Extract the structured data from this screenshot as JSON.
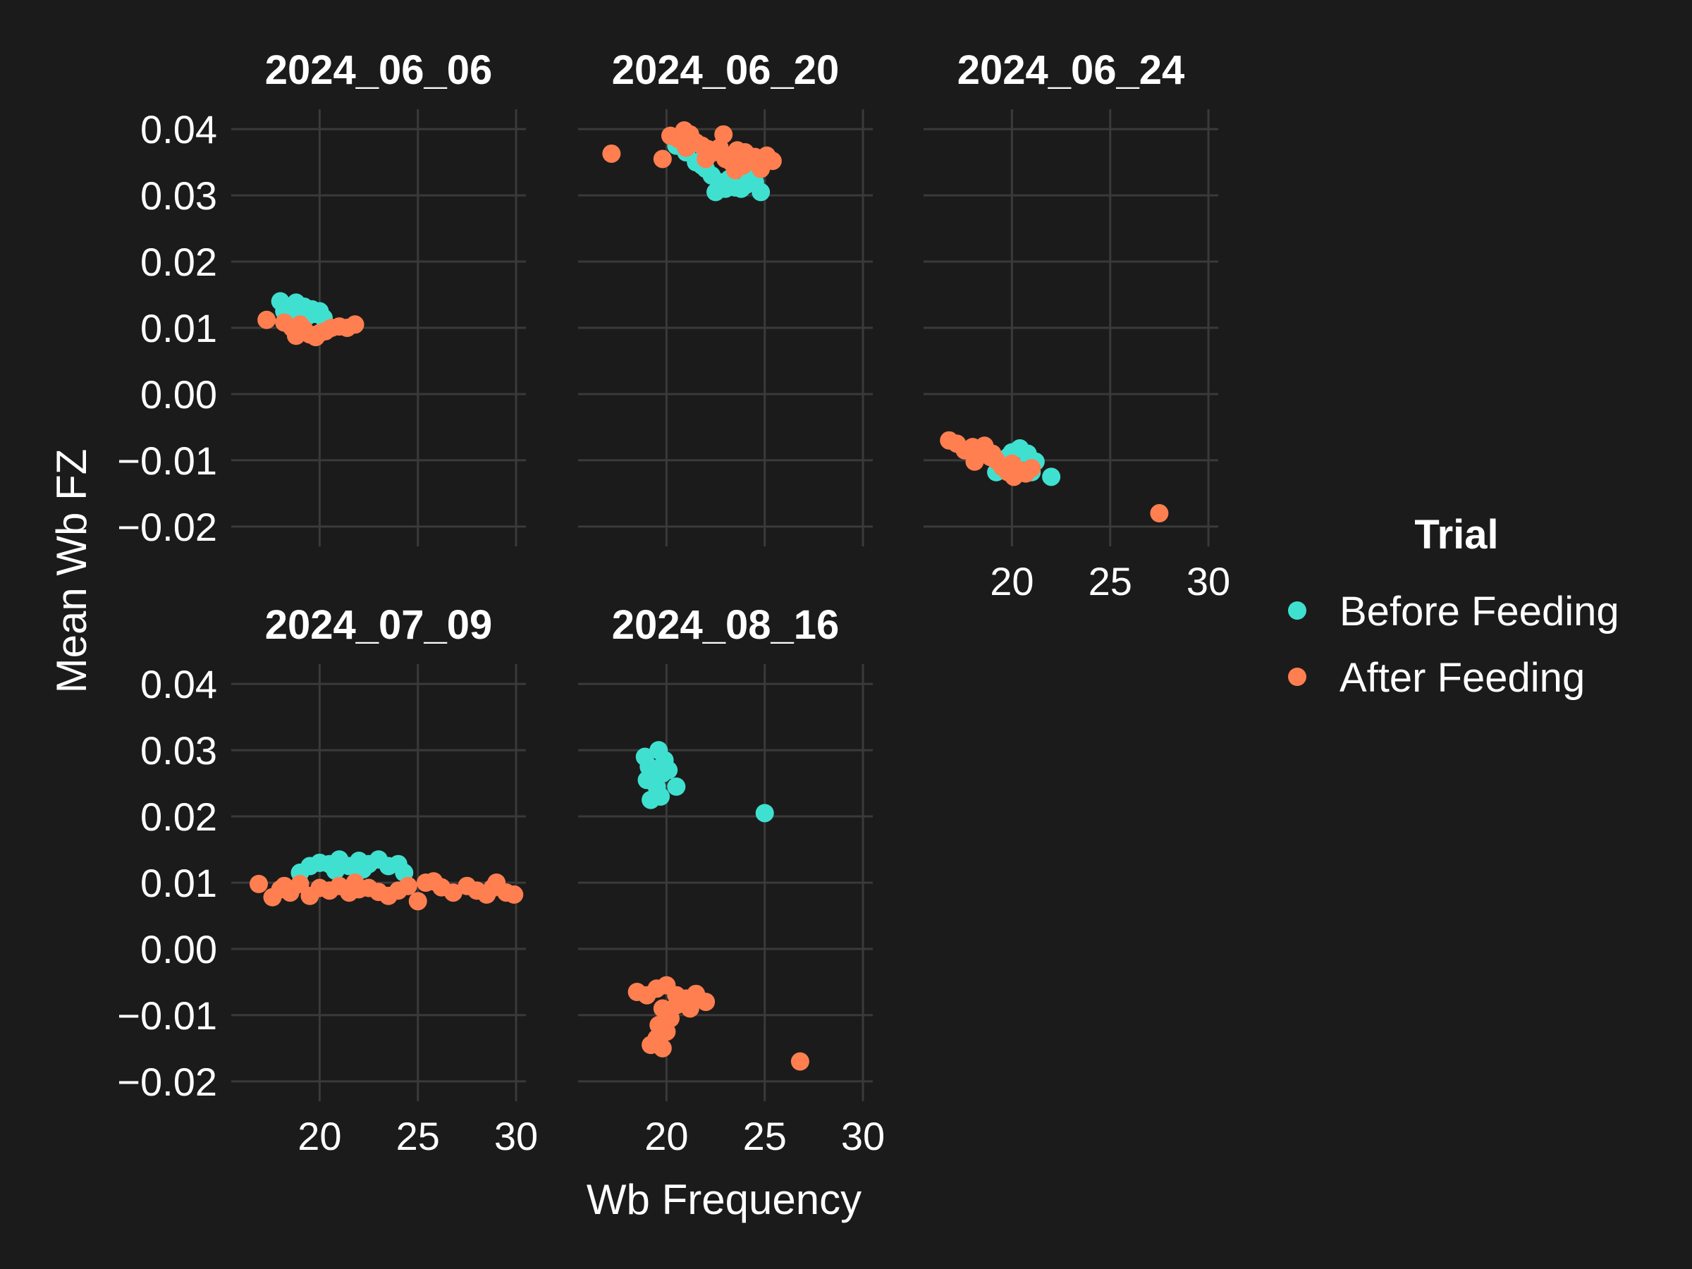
{
  "chart_data": {
    "type": "scatter",
    "xlabel": "Wb Frequency",
    "ylabel": "Mean Wb FZ",
    "xlim": [
      15.5,
      30.5
    ],
    "ylim": [
      -0.023,
      0.043
    ],
    "x_ticks": [
      20,
      25,
      30
    ],
    "x_tick_labels": [
      "20",
      "25",
      "30"
    ],
    "y_ticks": [
      0.04,
      0.03,
      0.02,
      0.01,
      0.0,
      -0.01,
      -0.02
    ],
    "y_tick_labels": [
      "0.04",
      "0.03",
      "0.02",
      "0.01",
      "0.00",
      "−0.01",
      "−0.02"
    ],
    "grid": true,
    "legend": {
      "title": "Trial",
      "placement": "right",
      "entries": [
        {
          "label": "Before Feeding",
          "color": "#40e0d0"
        },
        {
          "label": "After Feeding",
          "color": "#ff7f50"
        }
      ]
    },
    "facets": [
      {
        "title": "2024_06_06",
        "before": [
          [
            18.0,
            0.014
          ],
          [
            18.4,
            0.013
          ],
          [
            18.8,
            0.0138
          ],
          [
            19.2,
            0.0132
          ],
          [
            19.6,
            0.0128
          ],
          [
            20.0,
            0.0125
          ],
          [
            18.6,
            0.012
          ],
          [
            19.0,
            0.0126
          ],
          [
            19.4,
            0.0118
          ],
          [
            18.2,
            0.0125
          ],
          [
            19.8,
            0.0121
          ],
          [
            20.2,
            0.0115
          ]
        ],
        "after": [
          [
            17.3,
            0.0112
          ],
          [
            18.2,
            0.0108
          ],
          [
            18.6,
            0.01
          ],
          [
            18.9,
            0.0094
          ],
          [
            19.2,
            0.0098
          ],
          [
            19.5,
            0.009
          ],
          [
            19.8,
            0.0086
          ],
          [
            20.0,
            0.0092
          ],
          [
            20.3,
            0.0095
          ],
          [
            20.6,
            0.01
          ],
          [
            21.0,
            0.0102
          ],
          [
            21.4,
            0.01
          ],
          [
            21.8,
            0.0105
          ],
          [
            19.0,
            0.0105
          ],
          [
            18.8,
            0.0088
          ]
        ]
      },
      {
        "title": "2024_06_20",
        "before": [
          [
            20.5,
            0.0375
          ],
          [
            21.0,
            0.0365
          ],
          [
            21.5,
            0.035
          ],
          [
            22.0,
            0.034
          ],
          [
            22.3,
            0.033
          ],
          [
            22.7,
            0.032
          ],
          [
            23.0,
            0.031
          ],
          [
            23.5,
            0.0312
          ],
          [
            24.0,
            0.0315
          ],
          [
            24.5,
            0.032
          ],
          [
            24.8,
            0.0305
          ],
          [
            22.5,
            0.0305
          ],
          [
            21.8,
            0.0345
          ],
          [
            23.2,
            0.0325
          ],
          [
            24.2,
            0.033
          ],
          [
            23.8,
            0.031
          ]
        ],
        "after": [
          [
            17.2,
            0.0363
          ],
          [
            19.8,
            0.0355
          ],
          [
            20.2,
            0.039
          ],
          [
            20.6,
            0.0385
          ],
          [
            20.9,
            0.0398
          ],
          [
            21.2,
            0.0392
          ],
          [
            21.5,
            0.038
          ],
          [
            21.8,
            0.0375
          ],
          [
            22.1,
            0.037
          ],
          [
            22.4,
            0.0365
          ],
          [
            22.7,
            0.0372
          ],
          [
            23.0,
            0.0355
          ],
          [
            23.3,
            0.035
          ],
          [
            23.6,
            0.0368
          ],
          [
            23.9,
            0.0345
          ],
          [
            24.2,
            0.0352
          ],
          [
            24.5,
            0.0358
          ],
          [
            24.8,
            0.034
          ],
          [
            25.1,
            0.036
          ],
          [
            25.4,
            0.0352
          ],
          [
            22.9,
            0.0392
          ],
          [
            21.0,
            0.0372
          ],
          [
            22.0,
            0.0355
          ],
          [
            23.5,
            0.0338
          ],
          [
            24.0,
            0.0365
          ]
        ]
      },
      {
        "title": "2024_06_24",
        "before": [
          [
            19.2,
            -0.0118
          ],
          [
            19.6,
            -0.01
          ],
          [
            20.0,
            -0.0088
          ],
          [
            20.4,
            -0.0082
          ],
          [
            20.8,
            -0.009
          ],
          [
            21.2,
            -0.0102
          ],
          [
            21.0,
            -0.0118
          ],
          [
            20.2,
            -0.011
          ],
          [
            19.8,
            -0.0095
          ],
          [
            22.0,
            -0.0125
          ]
        ],
        "after": [
          [
            16.8,
            -0.007
          ],
          [
            17.2,
            -0.0075
          ],
          [
            17.6,
            -0.0085
          ],
          [
            18.0,
            -0.008
          ],
          [
            18.3,
            -0.009
          ],
          [
            18.6,
            -0.0078
          ],
          [
            18.9,
            -0.0095
          ],
          [
            19.2,
            -0.01
          ],
          [
            19.5,
            -0.011
          ],
          [
            19.8,
            -0.0118
          ],
          [
            20.1,
            -0.0125
          ],
          [
            20.4,
            -0.0115
          ],
          [
            20.7,
            -0.012
          ],
          [
            21.0,
            -0.0112
          ],
          [
            18.1,
            -0.0102
          ],
          [
            19.0,
            -0.009
          ],
          [
            20.0,
            -0.0105
          ],
          [
            27.5,
            -0.018
          ]
        ]
      },
      {
        "title": "2024_07_09",
        "before": [
          [
            19.0,
            0.0115
          ],
          [
            19.5,
            0.0125
          ],
          [
            20.0,
            0.013
          ],
          [
            20.5,
            0.0128
          ],
          [
            21.0,
            0.0135
          ],
          [
            21.5,
            0.0125
          ],
          [
            22.0,
            0.0133
          ],
          [
            22.5,
            0.0128
          ],
          [
            23.0,
            0.0135
          ],
          [
            23.5,
            0.0125
          ],
          [
            24.0,
            0.0128
          ],
          [
            24.3,
            0.0115
          ],
          [
            20.8,
            0.0118
          ],
          [
            22.2,
            0.012
          ]
        ],
        "after": [
          [
            16.9,
            0.0098
          ],
          [
            17.6,
            0.0078
          ],
          [
            18.0,
            0.009
          ],
          [
            18.5,
            0.0085
          ],
          [
            19.0,
            0.0098
          ],
          [
            19.5,
            0.008
          ],
          [
            20.0,
            0.0092
          ],
          [
            20.5,
            0.0088
          ],
          [
            21.0,
            0.0095
          ],
          [
            21.5,
            0.0085
          ],
          [
            22.0,
            0.009
          ],
          [
            22.5,
            0.0092
          ],
          [
            23.0,
            0.0086
          ],
          [
            23.5,
            0.008
          ],
          [
            24.0,
            0.0088
          ],
          [
            24.5,
            0.0095
          ],
          [
            25.0,
            0.0072
          ],
          [
            25.4,
            0.01
          ],
          [
            25.8,
            0.0102
          ],
          [
            26.2,
            0.0093
          ],
          [
            26.8,
            0.0085
          ],
          [
            27.5,
            0.0095
          ],
          [
            28.0,
            0.0088
          ],
          [
            28.5,
            0.0082
          ],
          [
            29.0,
            0.01
          ],
          [
            29.5,
            0.0085
          ],
          [
            29.9,
            0.0082
          ],
          [
            28.8,
            0.0092
          ],
          [
            18.2,
            0.0095
          ],
          [
            21.8,
            0.01
          ]
        ]
      },
      {
        "title": "2024_08_16",
        "before": [
          [
            18.9,
            0.029
          ],
          [
            19.1,
            0.0275
          ],
          [
            19.3,
            0.026
          ],
          [
            19.5,
            0.0245
          ],
          [
            19.7,
            0.023
          ],
          [
            19.9,
            0.0285
          ],
          [
            20.1,
            0.027
          ],
          [
            19.2,
            0.0225
          ],
          [
            19.6,
            0.03
          ],
          [
            20.5,
            0.0245
          ],
          [
            19.0,
            0.0255
          ],
          [
            19.8,
            0.0265
          ],
          [
            25.0,
            0.0205
          ]
        ],
        "after": [
          [
            18.5,
            -0.0065
          ],
          [
            19.0,
            -0.007
          ],
          [
            19.5,
            -0.006
          ],
          [
            20.0,
            -0.0055
          ],
          [
            20.5,
            -0.007
          ],
          [
            21.0,
            -0.0075
          ],
          [
            21.5,
            -0.0068
          ],
          [
            22.0,
            -0.008
          ],
          [
            19.8,
            -0.009
          ],
          [
            20.2,
            -0.0105
          ],
          [
            19.6,
            -0.0115
          ],
          [
            20.0,
            -0.0125
          ],
          [
            19.5,
            -0.0135
          ],
          [
            19.2,
            -0.0145
          ],
          [
            20.5,
            -0.0085
          ],
          [
            21.2,
            -0.009
          ],
          [
            19.8,
            -0.015
          ],
          [
            26.8,
            -0.017
          ]
        ]
      }
    ]
  }
}
